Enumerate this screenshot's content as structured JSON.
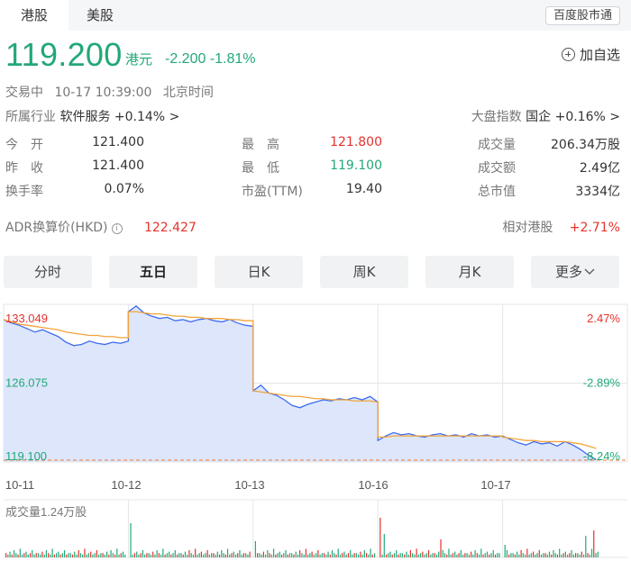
{
  "market_tabs": [
    {
      "label": "港股"
    },
    {
      "label": "美股"
    }
  ],
  "brand_button": "百度股市通",
  "quote": {
    "price": "119.200",
    "currency": "港元",
    "change": "-2.200 -1.81%",
    "watchlist_label": "加自选"
  },
  "meta": {
    "status": "交易中",
    "datetime": "10-17 10:39:00",
    "timezone": "北京时间"
  },
  "industry": {
    "label": "所属行业",
    "name": "软件服务",
    "change": "+0.14%",
    "arrow": ">"
  },
  "index": {
    "label": "大盘指数",
    "name": "国企",
    "change": "+0.16%",
    "arrow": ">"
  },
  "stats": [
    [
      {
        "label": "今　开",
        "value": "121.400"
      },
      {
        "label": "最　高",
        "value": "121.800"
      },
      {
        "label": "成交量",
        "value": "206.34万股"
      }
    ],
    [
      {
        "label": "昨　收",
        "value": "121.400"
      },
      {
        "label": "最　低",
        "value": "119.100"
      },
      {
        "label": "成交额",
        "value": "2.49亿"
      }
    ],
    [
      {
        "label": "换手率",
        "value": "0.07%"
      },
      {
        "label": "市盈(TTM)",
        "value": "19.40"
      },
      {
        "label": "总市值",
        "value": "3334亿"
      }
    ]
  ],
  "adr": {
    "label": "ADR换算价(HKD)",
    "info_icon": "i",
    "value": "122.427",
    "relative_label": "相对港股",
    "relative_value": "+2.71%"
  },
  "period_tabs": [
    {
      "label": "分时"
    },
    {
      "label": "五日"
    },
    {
      "label": "日K"
    },
    {
      "label": "周K"
    },
    {
      "label": "月K"
    },
    {
      "label": "更多"
    }
  ],
  "active_period": "五日",
  "chart_data": {
    "type": "line",
    "y_labels_left": [
      "133.049",
      "126.075",
      "119.100"
    ],
    "y_labels_right": [
      "2.47%",
      "-2.89%",
      "-8.24%"
    ],
    "ylim": [
      119.1,
      133.049
    ],
    "previous_close": 121.4,
    "x_labels": [
      "10-11",
      "10-12",
      "10-13",
      "10-16",
      "10-17"
    ],
    "days": [
      {
        "date": "10-11",
        "price": [
          131.7,
          131.4,
          131.2,
          130.9,
          130.6,
          130.8,
          130.5,
          130.2,
          129.7,
          129.4,
          129.5,
          129.8,
          129.6,
          129.5,
          129.7,
          129.6,
          129.8
        ],
        "avg": [
          131.7,
          131.5,
          131.3,
          131.2,
          131.1,
          131.0,
          130.9,
          130.8,
          130.6,
          130.5,
          130.4,
          130.3,
          130.3,
          130.2,
          130.2,
          130.1,
          130.1
        ]
      },
      {
        "date": "10-12",
        "price": [
          132.4,
          132.9,
          132.3,
          132.0,
          131.8,
          131.9,
          131.6,
          131.7,
          131.5,
          131.7,
          131.8,
          131.6,
          131.5,
          131.7,
          131.4,
          131.2,
          131.1
        ],
        "avg": [
          132.4,
          132.4,
          132.3,
          132.2,
          132.2,
          132.1,
          132.0,
          132.0,
          131.9,
          131.9,
          131.8,
          131.8,
          131.8,
          131.7,
          131.7,
          131.6,
          131.6
        ]
      },
      {
        "date": "10-13",
        "price": [
          125.4,
          125.9,
          125.2,
          125.0,
          124.6,
          124.1,
          123.9,
          124.2,
          124.4,
          124.6,
          124.5,
          124.7,
          124.6,
          124.8,
          124.6,
          124.9,
          124.4
        ],
        "avg": [
          125.4,
          125.3,
          125.2,
          125.1,
          125.0,
          124.9,
          124.9,
          124.8,
          124.7,
          124.7,
          124.6,
          124.6,
          124.6,
          124.5,
          124.5,
          124.5,
          124.4
        ]
      },
      {
        "date": "10-16",
        "price": [
          121.0,
          121.4,
          121.7,
          121.5,
          121.6,
          121.4,
          121.3,
          121.5,
          121.6,
          121.4,
          121.5,
          121.3,
          121.6,
          121.4,
          121.5,
          121.3,
          121.4
        ],
        "avg": [
          121.3,
          121.3,
          121.4,
          121.4,
          121.4,
          121.4,
          121.4,
          121.4,
          121.4,
          121.4,
          121.4,
          121.4,
          121.4,
          121.4,
          121.4,
          121.4,
          121.4
        ]
      },
      {
        "date": "10-17",
        "price": [
          121.4,
          121.1,
          120.8,
          120.6,
          120.9,
          120.7,
          120.8,
          120.5,
          120.9,
          120.6,
          120.2,
          119.7,
          119.3
        ],
        "avg": [
          121.3,
          121.2,
          121.1,
          121.0,
          121.0,
          120.9,
          120.9,
          120.9,
          120.9,
          120.8,
          120.7,
          120.5,
          120.3
        ]
      }
    ],
    "volume_label": "成交量1.24万股",
    "colors": {
      "price_line": "#3e6cf0",
      "avg_line": "#f2a43a",
      "area_fill": "#dde6fb",
      "ref_line": "#f07c3a",
      "up": "#e5322d",
      "down": "#22a877",
      "grid": "#e4e6ea"
    }
  }
}
